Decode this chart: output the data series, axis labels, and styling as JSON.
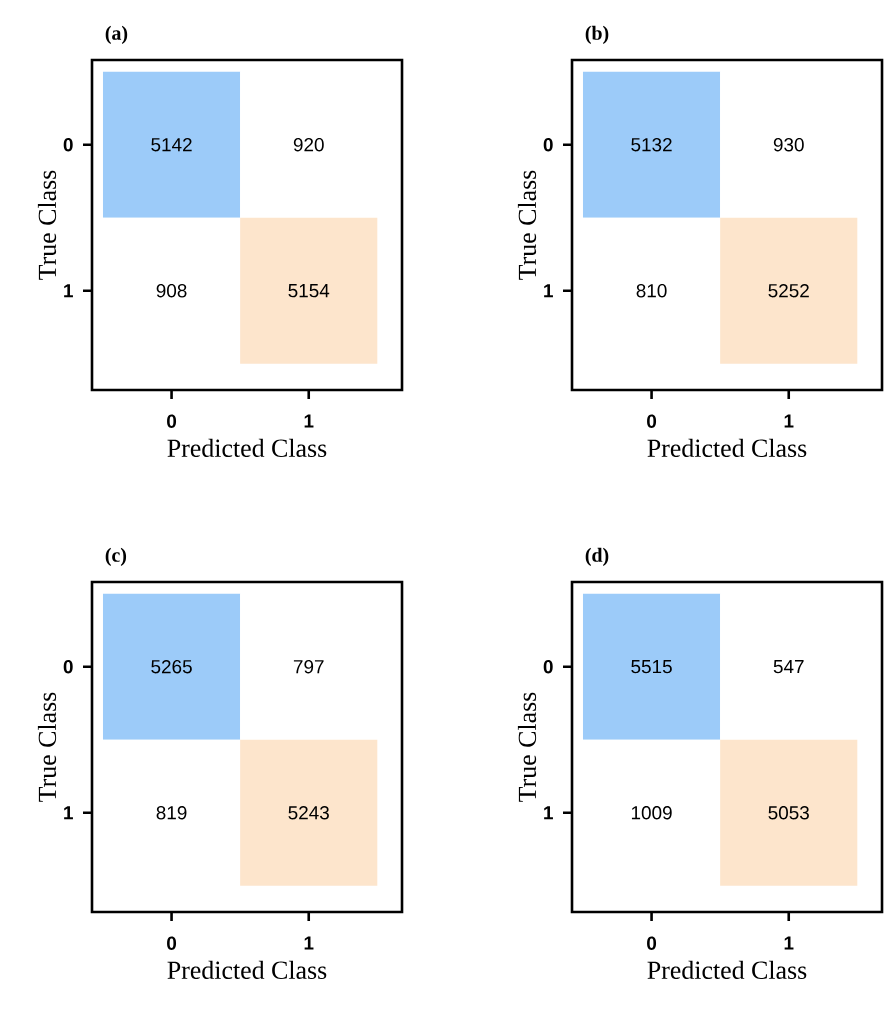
{
  "chart_data": [
    {
      "type": "heatmap",
      "title": "(a)",
      "xlabel": "Predicted Class",
      "ylabel": "True Class",
      "categories": [
        "0",
        "1"
      ],
      "y_categories": [
        "0",
        "1"
      ],
      "cells": [
        [
          5142,
          920
        ],
        [
          908,
          5154
        ]
      ],
      "colors": [
        [
          "#9ccbf9",
          "#ffffff"
        ],
        [
          "#ffffff",
          "#fde5cc"
        ]
      ],
      "data_labels": true
    },
    {
      "type": "heatmap",
      "title": "(b)",
      "xlabel": "Predicted Class",
      "ylabel": "True Class",
      "categories": [
        "0",
        "1"
      ],
      "y_categories": [
        "0",
        "1"
      ],
      "cells": [
        [
          5132,
          930
        ],
        [
          810,
          5252
        ]
      ],
      "colors": [
        [
          "#9ccbf9",
          "#ffffff"
        ],
        [
          "#ffffff",
          "#fde5cc"
        ]
      ],
      "data_labels": true
    },
    {
      "type": "heatmap",
      "title": "(c)",
      "xlabel": "Predicted Class",
      "ylabel": "True Class",
      "categories": [
        "0",
        "1"
      ],
      "y_categories": [
        "0",
        "1"
      ],
      "cells": [
        [
          5265,
          797
        ],
        [
          819,
          5243
        ]
      ],
      "colors": [
        [
          "#9ccbf9",
          "#ffffff"
        ],
        [
          "#ffffff",
          "#fde5cc"
        ]
      ],
      "data_labels": true
    },
    {
      "type": "heatmap",
      "title": "(d)",
      "xlabel": "Predicted Class",
      "ylabel": "True Class",
      "categories": [
        "0",
        "1"
      ],
      "y_categories": [
        "0",
        "1"
      ],
      "cells": [
        [
          5515,
          547
        ],
        [
          1009,
          5053
        ]
      ],
      "colors": [
        [
          "#9ccbf9",
          "#ffffff"
        ],
        [
          "#ffffff",
          "#fde5cc"
        ]
      ],
      "data_labels": true
    }
  ]
}
